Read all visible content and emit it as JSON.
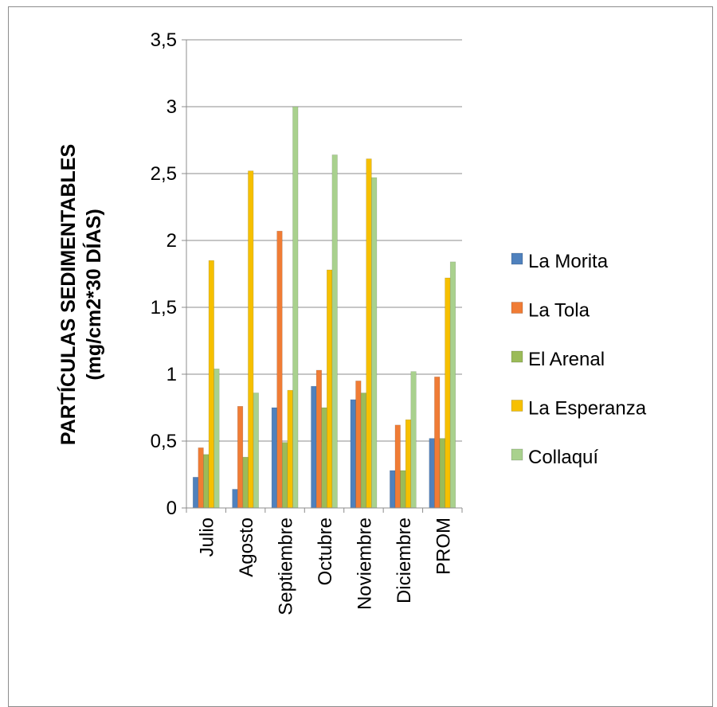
{
  "chart_data": {
    "type": "bar",
    "categories": [
      "Julio",
      "Agosto",
      "Septiembre",
      "Octubre",
      "Noviembre",
      "Diciembre",
      "PROM"
    ],
    "ylabel": "PARTÍCULAS SEDIMENTABLES",
    "ylabel2": "(mg/cm2*30 DÍAS)",
    "ylim": [
      0,
      3.5
    ],
    "yticks": [
      0,
      0.5,
      1,
      1.5,
      2,
      2.5,
      3,
      3.5
    ],
    "ytick_labels": [
      "0",
      "0,5",
      "1",
      "1,5",
      "2",
      "2,5",
      "3",
      "3,5"
    ],
    "grid": true,
    "legend_position": "right",
    "series": [
      {
        "name": "La Morita",
        "color": "#4f81bd",
        "values": [
          0.23,
          0.14,
          0.75,
          0.91,
          0.81,
          0.28,
          0.52
        ]
      },
      {
        "name": "La Tola",
        "color": "#f07c35",
        "values": [
          0.45,
          0.76,
          2.07,
          1.03,
          0.95,
          0.62,
          0.98
        ]
      },
      {
        "name": "El Arenal",
        "color": "#9bbb59",
        "values": [
          0.4,
          0.38,
          0.49,
          0.75,
          0.86,
          0.28,
          0.52
        ]
      },
      {
        "name": "La Esperanza",
        "color": "#f6c000",
        "values": [
          1.85,
          2.52,
          0.88,
          1.78,
          2.61,
          0.66,
          1.72
        ]
      },
      {
        "name": "Collaquí",
        "color": "#a9d18e",
        "values": [
          1.04,
          0.86,
          3.0,
          2.64,
          2.47,
          1.02,
          1.84
        ]
      }
    ]
  }
}
